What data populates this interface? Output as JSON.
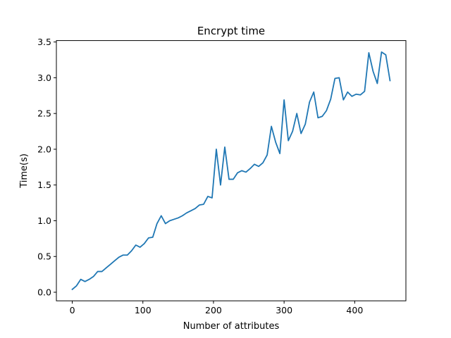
{
  "chart_data": {
    "type": "line",
    "title": "Encrypt time",
    "xlabel": "Number of attributes",
    "ylabel": "Time(s)",
    "xlim": [
      -22.5,
      472.5
    ],
    "ylim": [
      -0.12,
      3.52
    ],
    "grid": false,
    "xticks": [
      0,
      100,
      200,
      300,
      400
    ],
    "xtick_labels": [
      "0",
      "100",
      "200",
      "300",
      "400"
    ],
    "yticks": [
      0.0,
      0.5,
      1.0,
      1.5,
      2.0,
      2.5,
      3.0,
      3.5
    ],
    "ytick_labels": [
      "0.0",
      "0.5",
      "1.0",
      "1.5",
      "2.0",
      "2.5",
      "3.0",
      "3.5"
    ],
    "series": [
      {
        "color": "#1f77b4",
        "x": [
          0,
          6,
          12,
          18,
          24,
          30,
          36,
          42,
          48,
          54,
          60,
          66,
          72,
          78,
          84,
          90,
          96,
          102,
          108,
          114,
          120,
          126,
          132,
          138,
          144,
          150,
          156,
          162,
          168,
          174,
          180,
          186,
          192,
          198,
          204,
          210,
          216,
          222,
          228,
          234,
          240,
          246,
          252,
          258,
          264,
          270,
          276,
          282,
          288,
          294,
          300,
          306,
          312,
          318,
          324,
          330,
          336,
          342,
          348,
          354,
          360,
          366,
          372,
          378,
          384,
          390,
          396,
          402,
          408,
          414,
          420,
          426,
          432,
          438,
          444,
          450
        ],
        "y": [
          0.04,
          0.09,
          0.18,
          0.15,
          0.18,
          0.22,
          0.29,
          0.29,
          0.34,
          0.39,
          0.44,
          0.49,
          0.52,
          0.52,
          0.58,
          0.66,
          0.63,
          0.68,
          0.76,
          0.77,
          0.96,
          1.07,
          0.96,
          1.0,
          1.02,
          1.04,
          1.07,
          1.11,
          1.14,
          1.17,
          1.22,
          1.23,
          1.34,
          1.32,
          2.0,
          1.5,
          2.03,
          1.58,
          1.58,
          1.67,
          1.7,
          1.68,
          1.73,
          1.79,
          1.76,
          1.81,
          1.92,
          2.32,
          2.1,
          1.94,
          2.69,
          2.12,
          2.25,
          2.5,
          2.22,
          2.35,
          2.66,
          2.8,
          2.44,
          2.46,
          2.54,
          2.7,
          2.99,
          3.0,
          2.69,
          2.8,
          2.74,
          2.77,
          2.76,
          2.81,
          3.35,
          3.09,
          2.92,
          3.36,
          3.32,
          2.96
        ]
      }
    ]
  }
}
